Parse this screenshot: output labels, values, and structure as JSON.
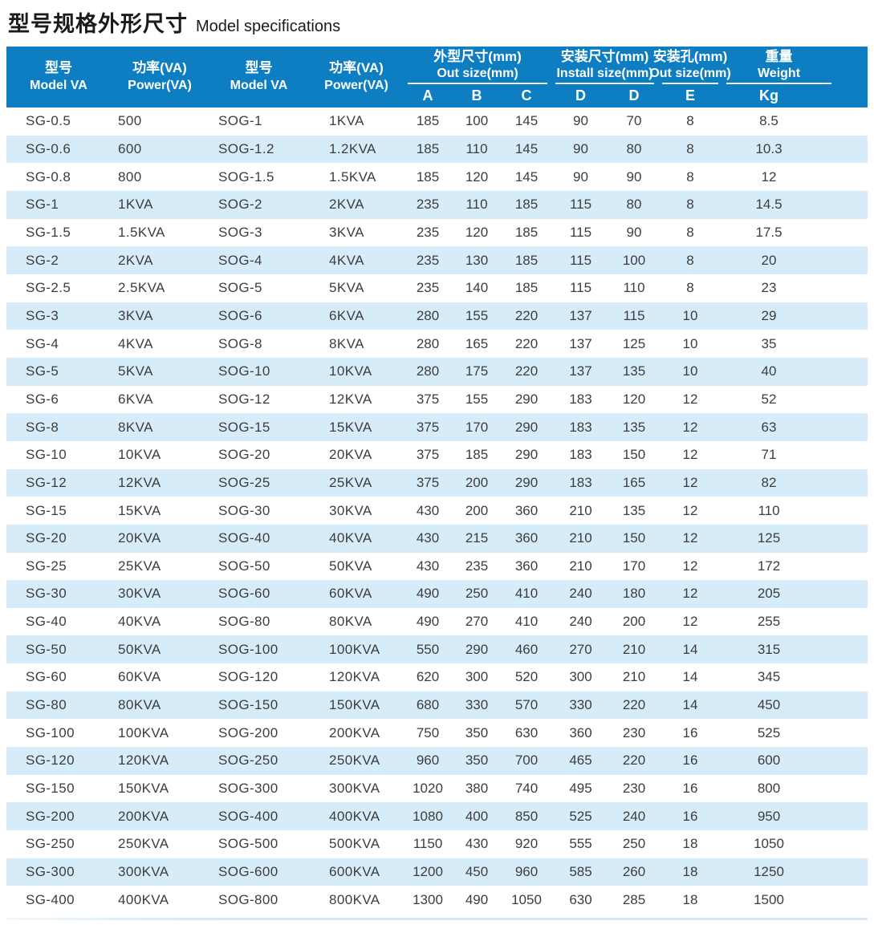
{
  "title": {
    "zh": "型号规格外形尺寸",
    "en": "Model specifications"
  },
  "table": {
    "header": {
      "model1": {
        "zh": "型号",
        "en": "Model VA"
      },
      "power1": {
        "zh": "功率(VA)",
        "en": "Power(VA)"
      },
      "model2": {
        "zh": "型号",
        "en": "Model VA"
      },
      "power2": {
        "zh": "功率(VA)",
        "en": "Power(VA)"
      },
      "group_outsize": {
        "zh": "外型尺寸(mm)",
        "en": "Out size(mm)",
        "subs": [
          "A",
          "B",
          "C"
        ]
      },
      "group_install": {
        "zh": "安装尺寸(mm)",
        "en": "Install size(mm)",
        "subs": [
          "D",
          "D"
        ]
      },
      "group_hole": {
        "zh": "安装孔(mm)",
        "en": "Out size(mm)",
        "subs": [
          "E"
        ]
      },
      "group_weight": {
        "zh": "重量",
        "en": "Weight",
        "subs": [
          "Kg"
        ]
      }
    },
    "columns": [
      "Model VA",
      "Power(VA)",
      "Model VA",
      "Power(VA)",
      "A",
      "B",
      "C",
      "D",
      "D",
      "E",
      "Kg"
    ],
    "rows": [
      [
        "SG-0.5",
        "500",
        "SOG-1",
        "1KVA",
        "185",
        "100",
        "145",
        "90",
        "70",
        "8",
        "8.5"
      ],
      [
        "SG-0.6",
        "600",
        "SOG-1.2",
        "1.2KVA",
        "185",
        "110",
        "145",
        "90",
        "80",
        "8",
        "10.3"
      ],
      [
        "SG-0.8",
        "800",
        "SOG-1.5",
        "1.5KVA",
        "185",
        "120",
        "145",
        "90",
        "90",
        "8",
        "12"
      ],
      [
        "SG-1",
        "1KVA",
        "SOG-2",
        "2KVA",
        "235",
        "110",
        "185",
        "115",
        "80",
        "8",
        "14.5"
      ],
      [
        "SG-1.5",
        "1.5KVA",
        "SOG-3",
        "3KVA",
        "235",
        "120",
        "185",
        "115",
        "90",
        "8",
        "17.5"
      ],
      [
        "SG-2",
        "2KVA",
        "SOG-4",
        "4KVA",
        "235",
        "130",
        "185",
        "115",
        "100",
        "8",
        "20"
      ],
      [
        "SG-2.5",
        "2.5KVA",
        "SOG-5",
        "5KVA",
        "235",
        "140",
        "185",
        "115",
        "110",
        "8",
        "23"
      ],
      [
        "SG-3",
        "3KVA",
        "SOG-6",
        "6KVA",
        "280",
        "155",
        "220",
        "137",
        "115",
        "10",
        "29"
      ],
      [
        "SG-4",
        "4KVA",
        "SOG-8",
        "8KVA",
        "280",
        "165",
        "220",
        "137",
        "125",
        "10",
        "35"
      ],
      [
        "SG-5",
        "5KVA",
        "SOG-10",
        "10KVA",
        "280",
        "175",
        "220",
        "137",
        "135",
        "10",
        "40"
      ],
      [
        "SG-6",
        "6KVA",
        "SOG-12",
        "12KVA",
        "375",
        "155",
        "290",
        "183",
        "120",
        "12",
        "52"
      ],
      [
        "SG-8",
        "8KVA",
        "SOG-15",
        "15KVA",
        "375",
        "170",
        "290",
        "183",
        "135",
        "12",
        "63"
      ],
      [
        "SG-10",
        "10KVA",
        "SOG-20",
        "20KVA",
        "375",
        "185",
        "290",
        "183",
        "150",
        "12",
        "71"
      ],
      [
        "SG-12",
        "12KVA",
        "SOG-25",
        "25KVA",
        "375",
        "200",
        "290",
        "183",
        "165",
        "12",
        "82"
      ],
      [
        "SG-15",
        "15KVA",
        "SOG-30",
        "30KVA",
        "430",
        "200",
        "360",
        "210",
        "135",
        "12",
        "110"
      ],
      [
        "SG-20",
        "20KVA",
        "SOG-40",
        "40KVA",
        "430",
        "215",
        "360",
        "210",
        "150",
        "12",
        "125"
      ],
      [
        "SG-25",
        "25KVA",
        "SOG-50",
        "50KVA",
        "430",
        "235",
        "360",
        "210",
        "170",
        "12",
        "172"
      ],
      [
        "SG-30",
        "30KVA",
        "SOG-60",
        "60KVA",
        "490",
        "250",
        "410",
        "240",
        "180",
        "12",
        "205"
      ],
      [
        "SG-40",
        "40KVA",
        "SOG-80",
        "80KVA",
        "490",
        "270",
        "410",
        "240",
        "200",
        "12",
        "255"
      ],
      [
        "SG-50",
        "50KVA",
        "SOG-100",
        "100KVA",
        "550",
        "290",
        "460",
        "270",
        "210",
        "14",
        "315"
      ],
      [
        "SG-60",
        "60KVA",
        "SOG-120",
        "120KVA",
        "620",
        "300",
        "520",
        "300",
        "210",
        "14",
        "345"
      ],
      [
        "SG-80",
        "80KVA",
        "SOG-150",
        "150KVA",
        "680",
        "330",
        "570",
        "330",
        "220",
        "14",
        "450"
      ],
      [
        "SG-100",
        "100KVA",
        "SOG-200",
        "200KVA",
        "750",
        "350",
        "630",
        "360",
        "230",
        "16",
        "525"
      ],
      [
        "SG-120",
        "120KVA",
        "SOG-250",
        "250KVA",
        "960",
        "350",
        "700",
        "465",
        "220",
        "16",
        "600"
      ],
      [
        "SG-150",
        "150KVA",
        "SOG-300",
        "300KVA",
        "1020",
        "380",
        "740",
        "495",
        "230",
        "16",
        "800"
      ],
      [
        "SG-200",
        "200KVA",
        "SOG-400",
        "400KVA",
        "1080",
        "400",
        "850",
        "525",
        "240",
        "16",
        "950"
      ],
      [
        "SG-250",
        "250KVA",
        "SOG-500",
        "500KVA",
        "1150",
        "430",
        "920",
        "555",
        "250",
        "18",
        "1050"
      ],
      [
        "SG-300",
        "300KVA",
        "SOG-600",
        "600KVA",
        "1200",
        "450",
        "960",
        "585",
        "260",
        "18",
        "1250"
      ],
      [
        "SG-400",
        "400KVA",
        "SOG-800",
        "800KVA",
        "1300",
        "490",
        "1050",
        "630",
        "285",
        "18",
        "1500"
      ]
    ]
  },
  "colors": {
    "header_bg": "#0e7ec3",
    "header_text": "#ffffff",
    "row_bg": "#ffffff",
    "row_alt_bg": "#d7ecf9",
    "text": "#3d3d3d",
    "title_text": "#1a1a1a"
  }
}
